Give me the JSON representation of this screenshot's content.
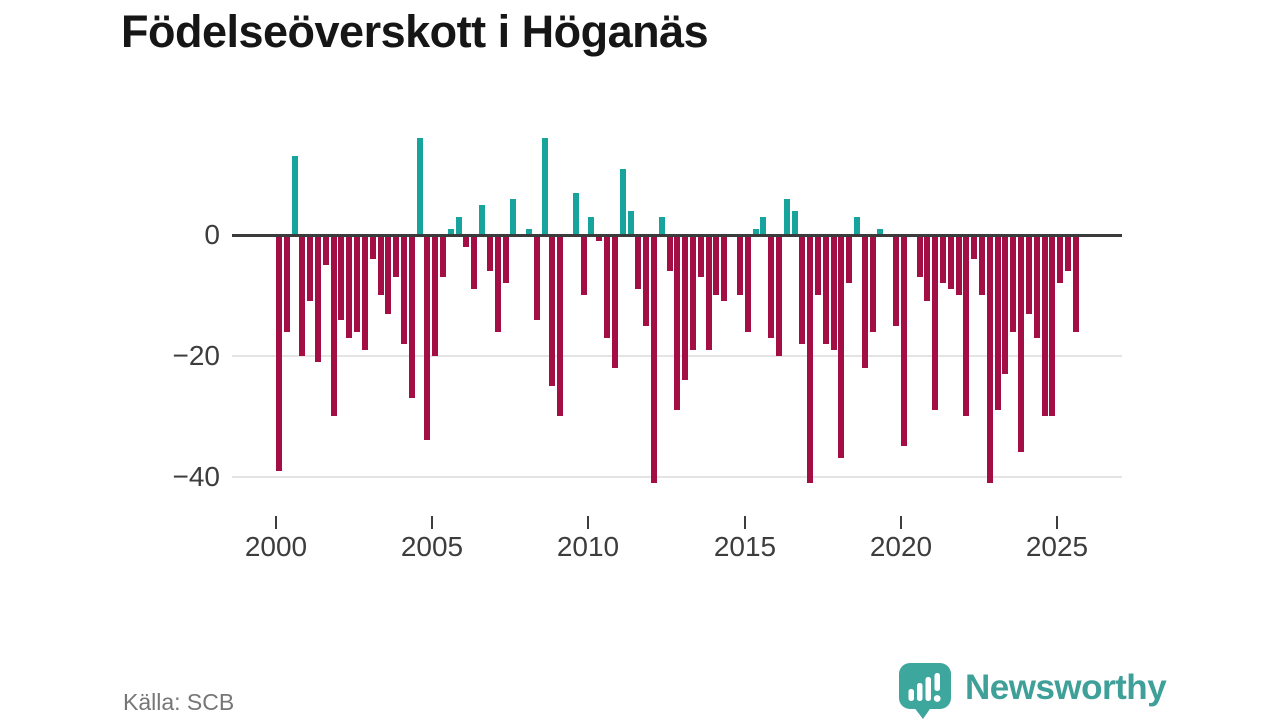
{
  "source": {
    "label": "Källa: SCB"
  },
  "branding": {
    "name": "Newsworthy",
    "logo_icon": "newsworthy-speech-bubble-chart-icon",
    "color": "#3ea099"
  },
  "colors": {
    "positive_bar": "#16a49c",
    "negative_bar": "#a30f45",
    "zero_axis": "#3b3b3b",
    "gridline": "#e4e4e4",
    "axis_text": "#3d3d3d",
    "title_text": "#161616",
    "source_text": "#767676"
  },
  "chart_data": {
    "type": "bar",
    "title": "Födelseöverskott i Höganäs",
    "frequency": "quarterly",
    "x_start_year": 2000,
    "x_start_quarter": 1,
    "values": [
      -39,
      -16,
      13,
      -20,
      -11,
      -21,
      -5,
      -30,
      -14,
      -17,
      -16,
      -19,
      -4,
      -10,
      -13,
      -7,
      -18,
      -27,
      16,
      -34,
      -20,
      -7,
      1,
      3,
      -2,
      -9,
      5,
      -6,
      -16,
      -8,
      6,
      0,
      1,
      -14,
      16,
      -25,
      -30,
      0,
      7,
      -10,
      3,
      -1,
      -17,
      -22,
      11,
      4,
      -9,
      -15,
      -41,
      3,
      -6,
      -29,
      -24,
      -19,
      -7,
      -19,
      -10,
      -11,
      0,
      -10,
      -16,
      1,
      3,
      -17,
      -20,
      6,
      4,
      -18,
      -41,
      -10,
      -18,
      -19,
      -37,
      -8,
      3,
      -22,
      -16,
      1,
      0,
      -15,
      -35,
      0,
      -7,
      -11,
      -29,
      -8,
      -9,
      -10,
      -30,
      -4,
      -10,
      -41,
      -29,
      -23,
      -16,
      -36,
      -13,
      -17,
      -30,
      -30,
      -8,
      -6,
      -16
    ],
    "ylim": [
      -44,
      18
    ],
    "y_ticks": [
      {
        "label": "0",
        "value": 0
      },
      {
        "label": "−20",
        "value": -20
      },
      {
        "label": "−40",
        "value": -40
      }
    ],
    "y_gridlines": [
      -20,
      -40
    ],
    "x_ticks": [
      {
        "label": "2000",
        "year": 2000
      },
      {
        "label": "2005",
        "year": 2005
      },
      {
        "label": "2010",
        "year": 2010
      },
      {
        "label": "2015",
        "year": 2015
      },
      {
        "label": "2020",
        "year": 2020
      },
      {
        "label": "2025",
        "year": 2025
      }
    ],
    "grid": "horizontal",
    "legend": "none"
  }
}
